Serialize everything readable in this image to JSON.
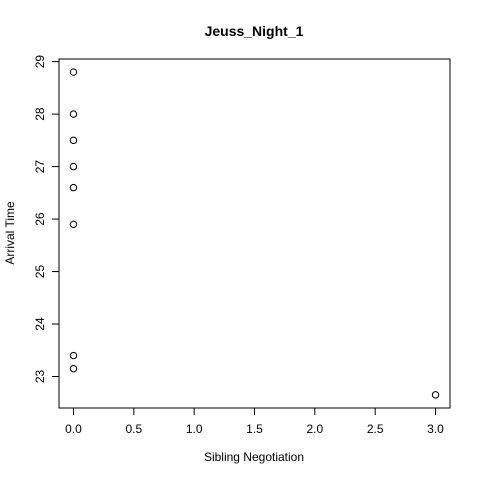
{
  "chart_data": {
    "type": "scatter",
    "title": "Jeuss_Night_1",
    "xlabel": "Sibling Negotiation",
    "ylabel": "Arrival Time",
    "xlim": [
      -0.12,
      3.12
    ],
    "ylim": [
      22.4,
      29.05
    ],
    "x_ticks": [
      0.0,
      0.5,
      1.0,
      1.5,
      2.0,
      2.5,
      3.0
    ],
    "x_tick_labels": [
      "0.0",
      "0.5",
      "1.0",
      "1.5",
      "2.0",
      "2.5",
      "3.0"
    ],
    "y_ticks": [
      23,
      24,
      25,
      26,
      27,
      28,
      29
    ],
    "y_tick_labels": [
      "23",
      "24",
      "25",
      "26",
      "27",
      "28",
      "29"
    ],
    "grid": false,
    "legend": "none",
    "points": [
      {
        "x": 0,
        "y": 28.8
      },
      {
        "x": 0,
        "y": 28.0
      },
      {
        "x": 0,
        "y": 27.5
      },
      {
        "x": 0,
        "y": 27.0
      },
      {
        "x": 0,
        "y": 26.6
      },
      {
        "x": 0,
        "y": 25.9
      },
      {
        "x": 0,
        "y": 23.4
      },
      {
        "x": 0,
        "y": 23.15
      },
      {
        "x": 3,
        "y": 22.65
      }
    ]
  }
}
